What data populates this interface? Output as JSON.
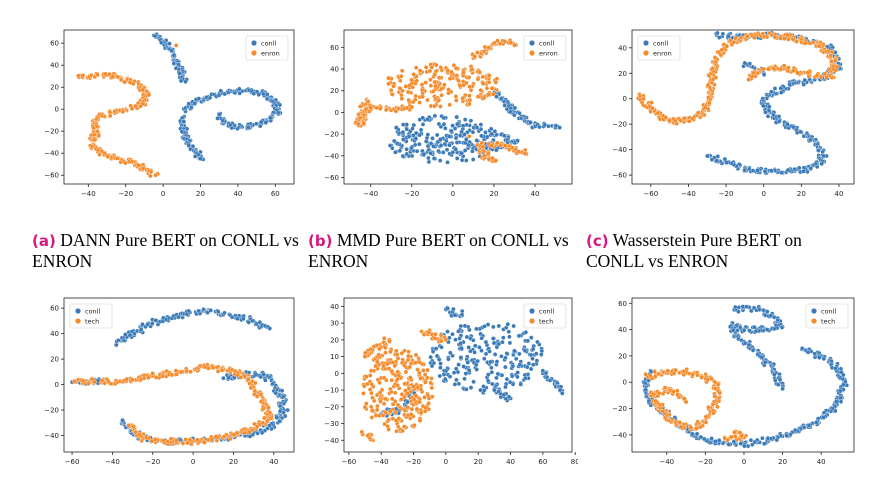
{
  "colors": {
    "series_a": "#3a7ab8",
    "series_b": "#f48a2a",
    "caption_tag": "#d6177f"
  },
  "captions": [
    {
      "tag": "(a)",
      "text": "DANN Pure BERT on CONLL vs ENRON"
    },
    {
      "tag": "(b)",
      "text": "MMD Pure BERT on CONLL vs ENRON"
    },
    {
      "tag": "(c)",
      "text": "Wasserstein Pure BERT on CONLL vs ENRON"
    }
  ],
  "chart_data": [
    {
      "type": "scatter",
      "legend_position": "top-right",
      "grid": false,
      "xlim": [
        -53,
        70
      ],
      "ylim": [
        -68,
        72
      ],
      "xticks": [
        -40,
        -20,
        0,
        20,
        40,
        60
      ],
      "yticks": [
        -60,
        -40,
        -20,
        0,
        20,
        40,
        60
      ],
      "series": [
        {
          "name": "conll",
          "color": "#3a7ab8",
          "points": [
            [
              -5,
              67
            ],
            [
              -2,
              64
            ],
            [
              1,
              60
            ],
            [
              3,
              55
            ],
            [
              6,
              48
            ],
            [
              8,
              40
            ],
            [
              10,
              32
            ],
            [
              12,
              25
            ],
            [
              10,
              -8
            ],
            [
              11,
              -20
            ],
            [
              14,
              -32
            ],
            [
              18,
              -40
            ],
            [
              20,
              -45
            ],
            [
              12,
              -2
            ],
            [
              16,
              5
            ],
            [
              22,
              10
            ],
            [
              30,
              14
            ],
            [
              38,
              16
            ],
            [
              46,
              17
            ],
            [
              54,
              14
            ],
            [
              60,
              8
            ],
            [
              62,
              0
            ],
            [
              58,
              -8
            ],
            [
              52,
              -13
            ],
            [
              45,
              -16
            ],
            [
              38,
              -16
            ],
            [
              33,
              -12
            ],
            [
              30,
              -5
            ]
          ]
        },
        {
          "name": "enron",
          "color": "#f48a2a",
          "points": [
            [
              -45,
              29
            ],
            [
              -35,
              31
            ],
            [
              -25,
              30
            ],
            [
              -18,
              25
            ],
            [
              -12,
              20
            ],
            [
              -9,
              12
            ],
            [
              -12,
              4
            ],
            [
              -20,
              0
            ],
            [
              -28,
              -3
            ],
            [
              -33,
              -6
            ],
            [
              -37,
              -12
            ],
            [
              -35,
              -20
            ],
            [
              -38,
              -28
            ],
            [
              -36,
              -35
            ],
            [
              -30,
              -42
            ],
            [
              -22,
              -46
            ],
            [
              -14,
              -50
            ],
            [
              -8,
              -55
            ],
            [
              -4,
              -60
            ],
            [
              7,
              58
            ]
          ]
        }
      ]
    },
    {
      "type": "scatter",
      "legend_position": "top-right",
      "grid": false,
      "xlim": [
        -53,
        58
      ],
      "ylim": [
        -66,
        76
      ],
      "xticks": [
        -40,
        -20,
        0,
        20,
        40
      ],
      "yticks": [
        -60,
        -40,
        -20,
        0,
        20,
        40,
        60
      ],
      "series": [
        {
          "name": "conll",
          "color": "#3a7ab8",
          "cloud": {
            "cx": -5,
            "cy": -25,
            "rx": 28,
            "ry": 22,
            "n": 240
          },
          "points": [
            [
              20,
              18
            ],
            [
              25,
              10
            ],
            [
              30,
              0
            ],
            [
              35,
              -8
            ],
            [
              40,
              -12
            ],
            [
              50,
              -12
            ],
            [
              52,
              -14
            ],
            [
              24,
              -20
            ],
            [
              30,
              -28
            ],
            [
              15,
              -35
            ]
          ]
        },
        {
          "name": "enron",
          "color": "#f48a2a",
          "cloud": {
            "cx": -5,
            "cy": 25,
            "rx": 28,
            "ry": 20,
            "n": 200
          },
          "points": [
            [
              -42,
              12
            ],
            [
              -46,
              -12
            ],
            [
              -40,
              5
            ],
            [
              -30,
              2
            ],
            [
              -20,
              5
            ],
            [
              10,
              50
            ],
            [
              18,
              60
            ],
            [
              25,
              66
            ],
            [
              30,
              62
            ],
            [
              15,
              -42
            ],
            [
              20,
              -45
            ],
            [
              12,
              -30
            ],
            [
              25,
              -30
            ],
            [
              35,
              -38
            ],
            [
              8,
              -22
            ]
          ]
        }
      ]
    },
    {
      "type": "scatter",
      "legend_position": "top-left",
      "grid": false,
      "xlim": [
        -70,
        48
      ],
      "ylim": [
        -67,
        54
      ],
      "xticks": [
        -60,
        -40,
        -20,
        0,
        20,
        40
      ],
      "yticks": [
        -60,
        -40,
        -20,
        0,
        20,
        40
      ],
      "series": [
        {
          "name": "conll",
          "color": "#3a7ab8",
          "points": [
            [
              -25,
              50
            ],
            [
              -10,
              48
            ],
            [
              5,
              50
            ],
            [
              20,
              48
            ],
            [
              35,
              40
            ],
            [
              40,
              25
            ],
            [
              30,
              15
            ],
            [
              15,
              12
            ],
            [
              5,
              5
            ],
            [
              0,
              -2
            ],
            [
              2,
              -10
            ],
            [
              8,
              -18
            ],
            [
              18,
              -25
            ],
            [
              28,
              -35
            ],
            [
              32,
              -45
            ],
            [
              25,
              -55
            ],
            [
              10,
              -58
            ],
            [
              -10,
              -55
            ],
            [
              -30,
              -45
            ],
            [
              0,
              20
            ],
            [
              -10,
              28
            ]
          ]
        },
        {
          "name": "enron",
          "color": "#f48a2a",
          "points": [
            [
              -66,
              3
            ],
            [
              -58,
              -10
            ],
            [
              -50,
              -18
            ],
            [
              -40,
              -17
            ],
            [
              -32,
              -12
            ],
            [
              -28,
              0
            ],
            [
              -28,
              15
            ],
            [
              -25,
              30
            ],
            [
              -20,
              42
            ],
            [
              -12,
              48
            ],
            [
              0,
              50
            ],
            [
              15,
              48
            ],
            [
              30,
              42
            ],
            [
              38,
              30
            ],
            [
              36,
              18
            ],
            [
              20,
              20
            ],
            [
              10,
              25
            ],
            [
              -2,
              22
            ],
            [
              -8,
              15
            ]
          ]
        }
      ]
    },
    {
      "type": "scatter",
      "legend_position": "top-left",
      "grid": false,
      "xlim": [
        -64,
        50
      ],
      "ylim": [
        -53,
        68
      ],
      "xticks": [
        -60,
        -40,
        -20,
        0,
        20,
        40
      ],
      "yticks": [
        -40,
        -20,
        0,
        20,
        40,
        60
      ],
      "series": [
        {
          "name": "conll",
          "color": "#3a7ab8",
          "points": [
            [
              -38,
              32
            ],
            [
              -30,
              40
            ],
            [
              -18,
              50
            ],
            [
              -5,
              55
            ],
            [
              5,
              58
            ],
            [
              18,
              55
            ],
            [
              30,
              50
            ],
            [
              38,
              44
            ],
            [
              15,
              5
            ],
            [
              25,
              8
            ],
            [
              35,
              8
            ],
            [
              40,
              0
            ],
            [
              44,
              -10
            ],
            [
              45,
              -20
            ],
            [
              42,
              -30
            ],
            [
              30,
              -38
            ],
            [
              15,
              -42
            ],
            [
              0,
              -44
            ],
            [
              -15,
              -45
            ],
            [
              -28,
              -40
            ],
            [
              -35,
              -28
            ],
            [
              -60,
              2
            ],
            [
              -45,
              3
            ]
          ]
        },
        {
          "name": "tech",
          "color": "#f48a2a",
          "points": [
            [
              -58,
              2
            ],
            [
              -45,
              3
            ],
            [
              -35,
              2
            ],
            [
              -25,
              5
            ],
            [
              -15,
              8
            ],
            [
              -5,
              10
            ],
            [
              5,
              14
            ],
            [
              15,
              12
            ],
            [
              25,
              8
            ],
            [
              30,
              -2
            ],
            [
              35,
              -15
            ],
            [
              38,
              -25
            ],
            [
              30,
              -35
            ],
            [
              20,
              -40
            ],
            [
              5,
              -45
            ],
            [
              -10,
              -45
            ],
            [
              -25,
              -42
            ],
            [
              -32,
              -32
            ]
          ]
        }
      ]
    },
    {
      "type": "scatter",
      "legend_position": "top-right",
      "grid": false,
      "xlim": [
        -63,
        78
      ],
      "ylim": [
        -47,
        45
      ],
      "xticks": [
        -60,
        -40,
        -20,
        0,
        20,
        40,
        60,
        80
      ],
      "yticks": [
        -40,
        -30,
        -20,
        -10,
        0,
        10,
        20,
        30,
        40
      ],
      "series": [
        {
          "name": "conll",
          "color": "#3a7ab8",
          "cloud": {
            "cx": 25,
            "cy": 10,
            "rx": 35,
            "ry": 22,
            "n": 230
          },
          "points": [
            [
              0,
              38
            ],
            [
              10,
              35
            ],
            [
              60,
              0
            ],
            [
              70,
              -8
            ],
            [
              72,
              -12
            ],
            [
              -20,
              -10
            ],
            [
              -25,
              -20
            ],
            [
              -40,
              -25
            ],
            [
              40,
              -15
            ],
            [
              30,
              -10
            ]
          ]
        },
        {
          "name": "tech",
          "color": "#f48a2a",
          "cloud": {
            "cx": -30,
            "cy": -10,
            "rx": 22,
            "ry": 25,
            "n": 260
          },
          "points": [
            [
              -45,
              -40
            ],
            [
              -52,
              -35
            ],
            [
              -15,
              25
            ],
            [
              0,
              20
            ],
            [
              -35,
              20
            ],
            [
              -50,
              10
            ]
          ]
        }
      ]
    },
    {
      "type": "scatter",
      "legend_position": "top-right",
      "grid": false,
      "xlim": [
        -58,
        57
      ],
      "ylim": [
        -53,
        64
      ],
      "xticks": [
        -40,
        -20,
        0,
        20,
        40
      ],
      "yticks": [
        -40,
        -20,
        0,
        20,
        40,
        60
      ],
      "series": [
        {
          "name": "conll",
          "color": "#3a7ab8",
          "points": [
            [
              -5,
              55
            ],
            [
              5,
              56
            ],
            [
              15,
              50
            ],
            [
              20,
              42
            ],
            [
              12,
              40
            ],
            [
              0,
              40
            ],
            [
              -6,
              45
            ],
            [
              -4,
              35
            ],
            [
              5,
              25
            ],
            [
              15,
              10
            ],
            [
              20,
              -5
            ],
            [
              30,
              25
            ],
            [
              40,
              20
            ],
            [
              48,
              12
            ],
            [
              52,
              0
            ],
            [
              50,
              -12
            ],
            [
              45,
              -22
            ],
            [
              38,
              -30
            ],
            [
              25,
              -38
            ],
            [
              12,
              -44
            ],
            [
              0,
              -47
            ],
            [
              -20,
              -44
            ],
            [
              -35,
              -30
            ],
            [
              -48,
              -15
            ],
            [
              -52,
              0
            ],
            [
              -48,
              8
            ],
            [
              -15,
              -10
            ]
          ]
        },
        {
          "name": "tech",
          "color": "#f48a2a",
          "points": [
            [
              -50,
              4
            ],
            [
              -42,
              8
            ],
            [
              -32,
              8
            ],
            [
              -22,
              5
            ],
            [
              -15,
              0
            ],
            [
              -14,
              -12
            ],
            [
              -18,
              -25
            ],
            [
              -25,
              -35
            ],
            [
              -35,
              -32
            ],
            [
              -42,
              -22
            ],
            [
              -48,
              -10
            ],
            [
              -38,
              -5
            ],
            [
              -30,
              -15
            ],
            [
              -10,
              -42
            ],
            [
              0,
              -42
            ],
            [
              -5,
              -38
            ]
          ]
        }
      ]
    }
  ]
}
